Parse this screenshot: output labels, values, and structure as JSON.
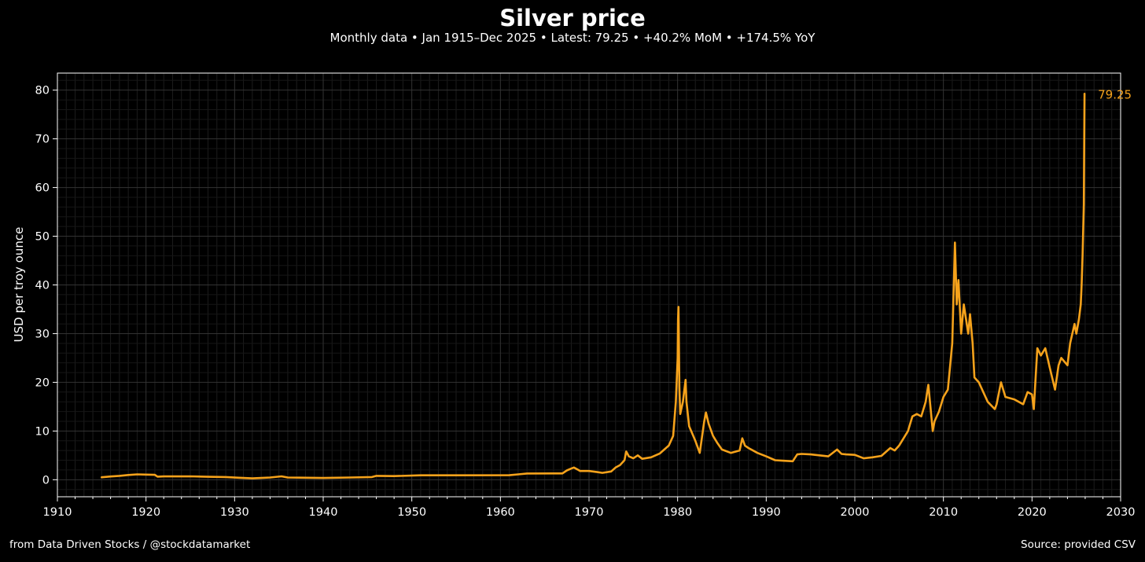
{
  "chart_data": {
    "type": "line",
    "title": "Silver price",
    "subtitle": "Monthly data • Jan 1915–Dec 2025 • Latest: 79.25 • +40.2% MoM • +174.5% YoY",
    "xlabel": "",
    "ylabel": "USD per troy ounce",
    "xlim": [
      1910,
      2030
    ],
    "ylim": [
      -3.5,
      83.5
    ],
    "x_ticks": [
      1910,
      1920,
      1930,
      1940,
      1950,
      1960,
      1970,
      1980,
      1990,
      2000,
      2010,
      2020,
      2030
    ],
    "y_ticks": [
      0,
      10,
      20,
      30,
      40,
      50,
      60,
      70,
      80
    ],
    "grid": true,
    "series": [
      {
        "color": "#f5a21b",
        "points": [
          [
            1915.0,
            0.5
          ],
          [
            1916.0,
            0.66
          ],
          [
            1917.0,
            0.8
          ],
          [
            1918.0,
            0.97
          ],
          [
            1919.0,
            1.1
          ],
          [
            1920.0,
            1.05
          ],
          [
            1921.0,
            1.0
          ],
          [
            1921.3,
            0.63
          ],
          [
            1922.0,
            0.68
          ],
          [
            1925.0,
            0.69
          ],
          [
            1927.0,
            0.6
          ],
          [
            1929.0,
            0.55
          ],
          [
            1930.5,
            0.4
          ],
          [
            1932.0,
            0.28
          ],
          [
            1933.0,
            0.35
          ],
          [
            1934.0,
            0.45
          ],
          [
            1935.3,
            0.7
          ],
          [
            1936.0,
            0.45
          ],
          [
            1940.0,
            0.35
          ],
          [
            1943.0,
            0.45
          ],
          [
            1945.5,
            0.55
          ],
          [
            1946.0,
            0.8
          ],
          [
            1948.0,
            0.75
          ],
          [
            1951.0,
            0.9
          ],
          [
            1955.0,
            0.91
          ],
          [
            1961.0,
            0.92
          ],
          [
            1962.0,
            1.1
          ],
          [
            1963.0,
            1.28
          ],
          [
            1966.0,
            1.29
          ],
          [
            1967.0,
            1.3
          ],
          [
            1967.5,
            1.9
          ],
          [
            1968.0,
            2.3
          ],
          [
            1968.3,
            2.5
          ],
          [
            1968.7,
            2.1
          ],
          [
            1969.0,
            1.8
          ],
          [
            1970.0,
            1.8
          ],
          [
            1971.0,
            1.55
          ],
          [
            1971.5,
            1.4
          ],
          [
            1972.5,
            1.7
          ],
          [
            1973.0,
            2.5
          ],
          [
            1973.5,
            3.0
          ],
          [
            1974.0,
            4.0
          ],
          [
            1974.2,
            5.8
          ],
          [
            1974.5,
            4.8
          ],
          [
            1975.0,
            4.4
          ],
          [
            1975.5,
            5.0
          ],
          [
            1976.0,
            4.3
          ],
          [
            1977.0,
            4.6
          ],
          [
            1978.0,
            5.4
          ],
          [
            1979.0,
            7.0
          ],
          [
            1979.5,
            9.0
          ],
          [
            1979.8,
            16.0
          ],
          [
            1980.0,
            25.0
          ],
          [
            1980.05,
            33.0
          ],
          [
            1980.1,
            35.5
          ],
          [
            1980.2,
            19.0
          ],
          [
            1980.3,
            13.5
          ],
          [
            1980.6,
            16.0
          ],
          [
            1980.9,
            20.5
          ],
          [
            1981.0,
            16.0
          ],
          [
            1981.3,
            11.0
          ],
          [
            1982.0,
            8.0
          ],
          [
            1982.5,
            5.5
          ],
          [
            1983.0,
            12.0
          ],
          [
            1983.2,
            13.8
          ],
          [
            1983.5,
            11.5
          ],
          [
            1984.0,
            9.0
          ],
          [
            1984.5,
            7.5
          ],
          [
            1985.0,
            6.2
          ],
          [
            1986.0,
            5.5
          ],
          [
            1987.0,
            6.0
          ],
          [
            1987.3,
            8.5
          ],
          [
            1987.6,
            7.0
          ],
          [
            1988.0,
            6.5
          ],
          [
            1989.0,
            5.5
          ],
          [
            1990.0,
            4.8
          ],
          [
            1991.0,
            4.0
          ],
          [
            1992.0,
            3.9
          ],
          [
            1993.0,
            3.8
          ],
          [
            1993.5,
            5.2
          ],
          [
            1994.0,
            5.3
          ],
          [
            1995.0,
            5.2
          ],
          [
            1996.0,
            5.0
          ],
          [
            1997.0,
            4.8
          ],
          [
            1998.0,
            6.2
          ],
          [
            1998.5,
            5.3
          ],
          [
            1999.0,
            5.2
          ],
          [
            2000.0,
            5.1
          ],
          [
            2001.0,
            4.4
          ],
          [
            2002.0,
            4.6
          ],
          [
            2003.0,
            4.9
          ],
          [
            2004.0,
            6.5
          ],
          [
            2004.5,
            6.0
          ],
          [
            2005.0,
            7.0
          ],
          [
            2006.0,
            10.0
          ],
          [
            2006.5,
            13.0
          ],
          [
            2007.0,
            13.5
          ],
          [
            2007.5,
            13.0
          ],
          [
            2008.0,
            16.0
          ],
          [
            2008.3,
            19.5
          ],
          [
            2008.8,
            10.0
          ],
          [
            2009.0,
            12.0
          ],
          [
            2009.5,
            14.0
          ],
          [
            2010.0,
            17.0
          ],
          [
            2010.5,
            18.5
          ],
          [
            2011.0,
            28.0
          ],
          [
            2011.3,
            48.7
          ],
          [
            2011.5,
            36.0
          ],
          [
            2011.7,
            41.0
          ],
          [
            2012.0,
            30.0
          ],
          [
            2012.3,
            36.0
          ],
          [
            2012.8,
            30.0
          ],
          [
            2013.0,
            34.0
          ],
          [
            2013.3,
            28.0
          ],
          [
            2013.5,
            21.0
          ],
          [
            2014.0,
            20.0
          ],
          [
            2015.0,
            16.0
          ],
          [
            2015.8,
            14.5
          ],
          [
            2016.0,
            15.5
          ],
          [
            2016.5,
            20.0
          ],
          [
            2017.0,
            17.0
          ],
          [
            2018.0,
            16.5
          ],
          [
            2019.0,
            15.5
          ],
          [
            2019.5,
            18.0
          ],
          [
            2020.0,
            17.5
          ],
          [
            2020.2,
            14.5
          ],
          [
            2020.6,
            27.0
          ],
          [
            2021.0,
            25.5
          ],
          [
            2021.5,
            27.0
          ],
          [
            2022.0,
            23.0
          ],
          [
            2022.6,
            18.5
          ],
          [
            2023.0,
            23.5
          ],
          [
            2023.3,
            25.0
          ],
          [
            2024.0,
            23.5
          ],
          [
            2024.3,
            28.0
          ],
          [
            2024.8,
            32.0
          ],
          [
            2025.0,
            30.0
          ],
          [
            2025.3,
            33.0
          ],
          [
            2025.5,
            36.0
          ],
          [
            2025.6,
            40.0
          ],
          [
            2025.7,
            46.0
          ],
          [
            2025.85,
            56.5
          ],
          [
            2025.93,
            79.25
          ]
        ]
      }
    ],
    "last_value_label": "79.25"
  },
  "footer": {
    "left": "from Data Driven Stocks / @stockdatamarket",
    "right": "Source: provided CSV"
  }
}
